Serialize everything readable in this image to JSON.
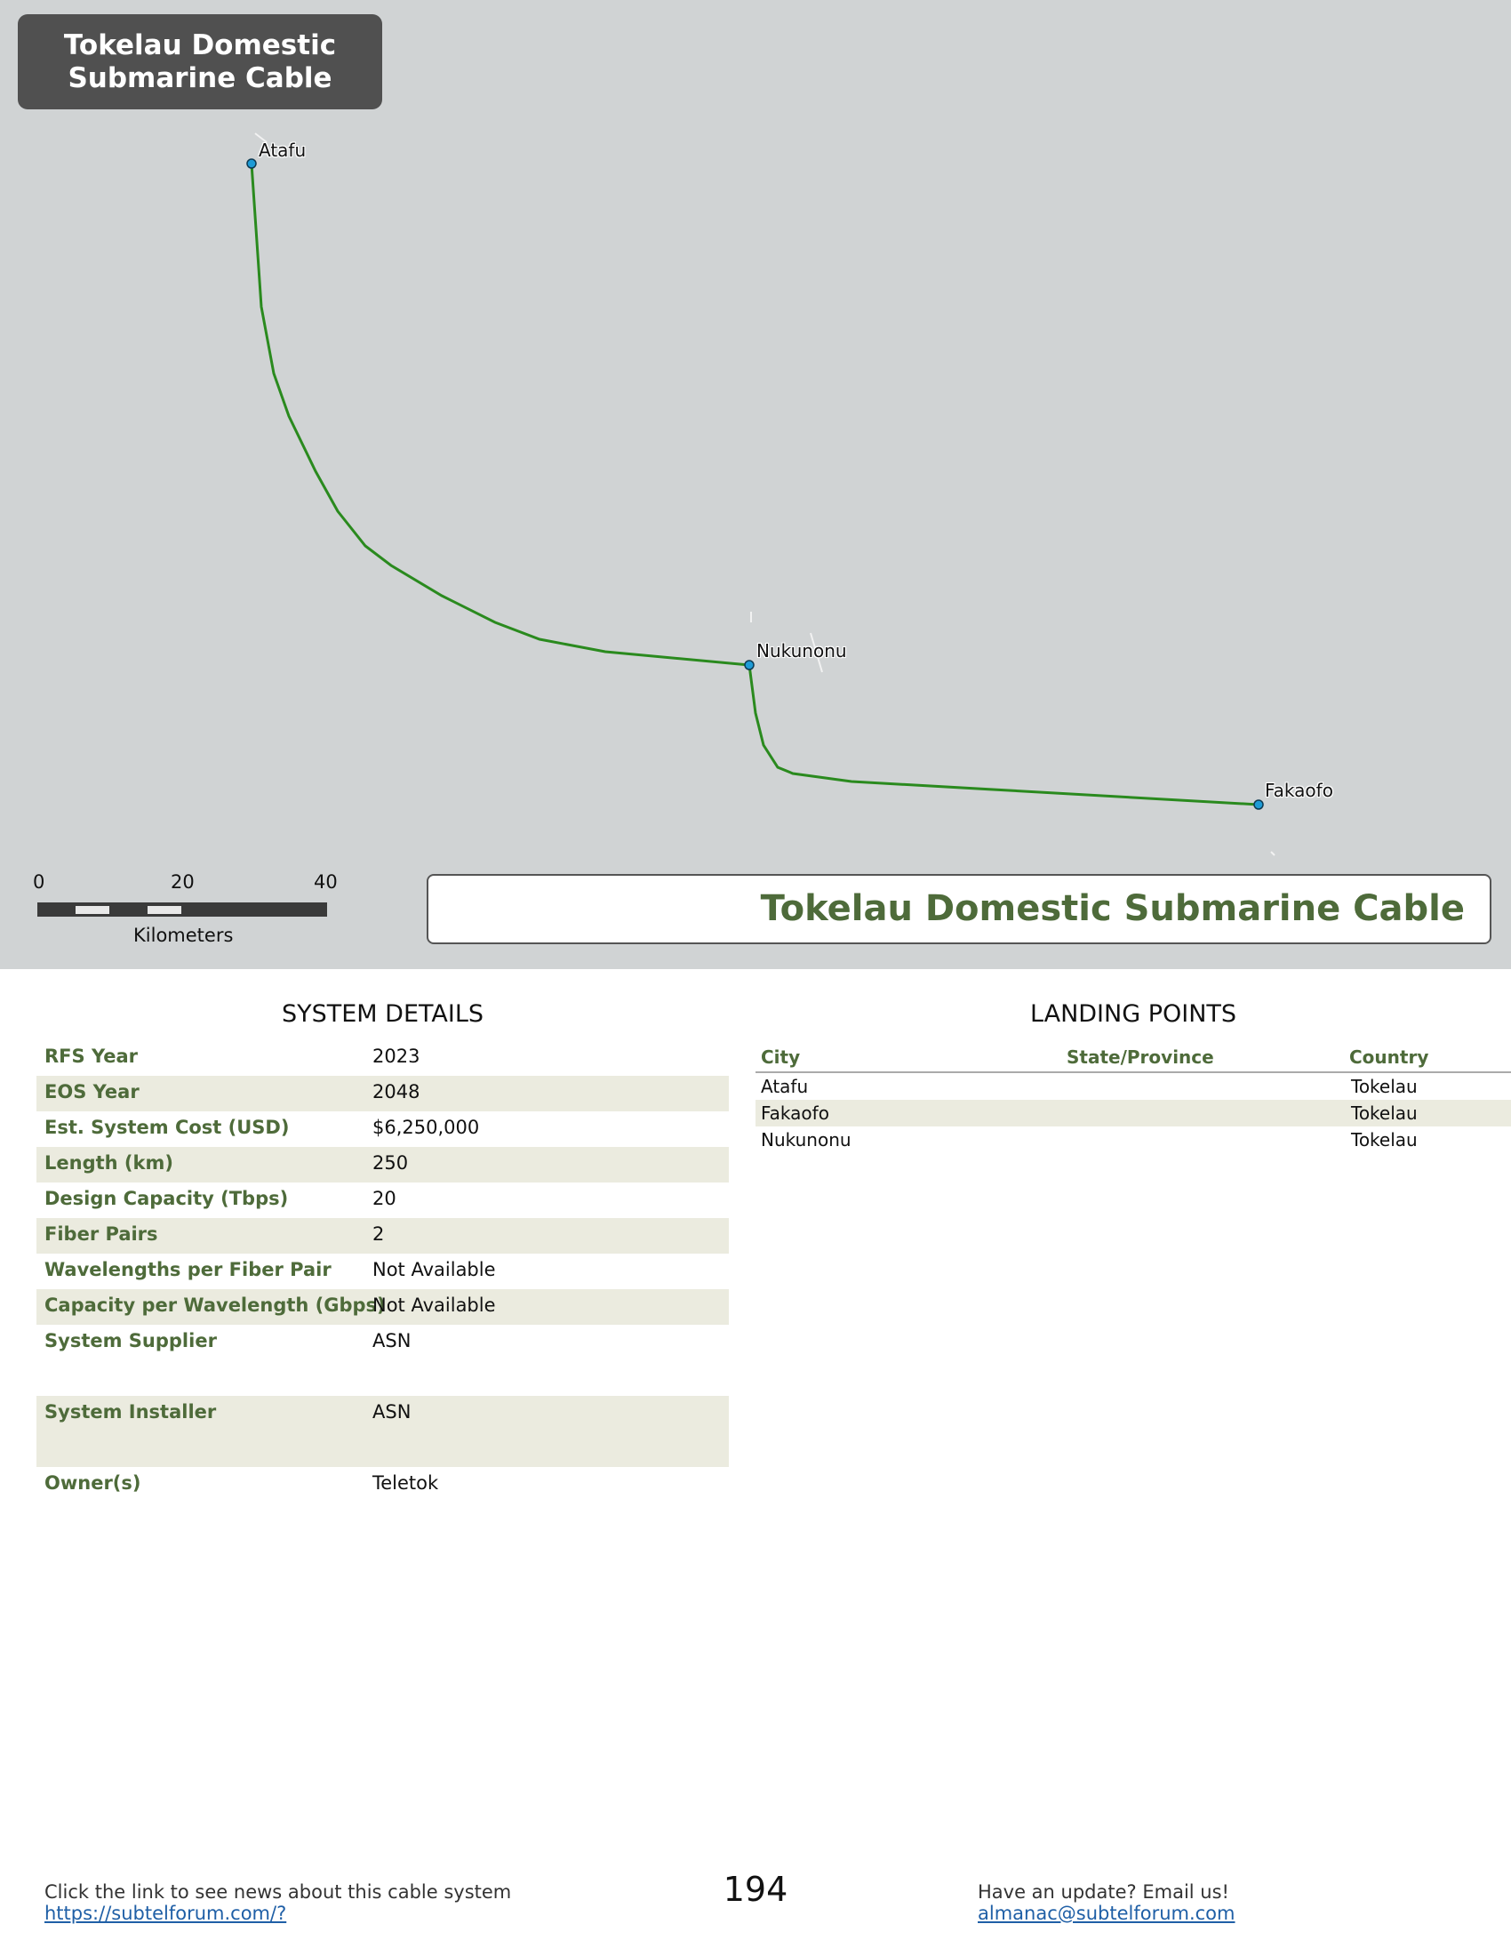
{
  "map": {
    "title": "Tokelau Domestic Submarine Cable",
    "banner_title": "Tokelau Domestic Submarine Cable",
    "places": [
      {
        "name": "Atafu"
      },
      {
        "name": "Nukunonu"
      },
      {
        "name": "Fakaofo"
      }
    ],
    "scale": {
      "ticks": [
        "0",
        "20",
        "40"
      ],
      "unit": "Kilometers"
    },
    "colors": {
      "cable": "#2a8a1e",
      "node": "#1e9bd6",
      "sea": "#d0d3d4",
      "title_box": "#505050",
      "accent": "#4e6b3a"
    }
  },
  "system_details": {
    "heading": "SYSTEM DETAILS",
    "rows": [
      {
        "label": "RFS Year",
        "value": "2023"
      },
      {
        "label": "EOS Year",
        "value": "2048"
      },
      {
        "label": "Est. System Cost (USD)",
        "value": "$6,250,000"
      },
      {
        "label": "Length (km)",
        "value": "250"
      },
      {
        "label": "Design Capacity (Tbps)",
        "value": "20"
      },
      {
        "label": "Fiber Pairs",
        "value": "2"
      },
      {
        "label": "Wavelengths per Fiber Pair",
        "value": "Not Available"
      },
      {
        "label": "Capacity per Wavelength (Gbps)",
        "value": "Not Available"
      },
      {
        "label": "System Supplier",
        "value": "ASN"
      },
      {
        "label": "System Installer",
        "value": "ASN"
      },
      {
        "label": "Owner(s)",
        "value": "Teletok"
      }
    ]
  },
  "landing_points": {
    "heading": "LANDING POINTS",
    "columns": [
      "City",
      "State/Province",
      "Country"
    ],
    "rows": [
      {
        "city": "Atafu",
        "state": "",
        "country": "Tokelau"
      },
      {
        "city": "Fakaofo",
        "state": "",
        "country": "Tokelau"
      },
      {
        "city": "Nukunonu",
        "state": "",
        "country": "Tokelau"
      }
    ]
  },
  "footer": {
    "news_text": "Click the link to see news about this cable system",
    "news_link": "https://subtelforum.com/?",
    "page_number": "194",
    "update_text": "Have an update? Email us!",
    "email": "almanac@subtelforum.com"
  }
}
